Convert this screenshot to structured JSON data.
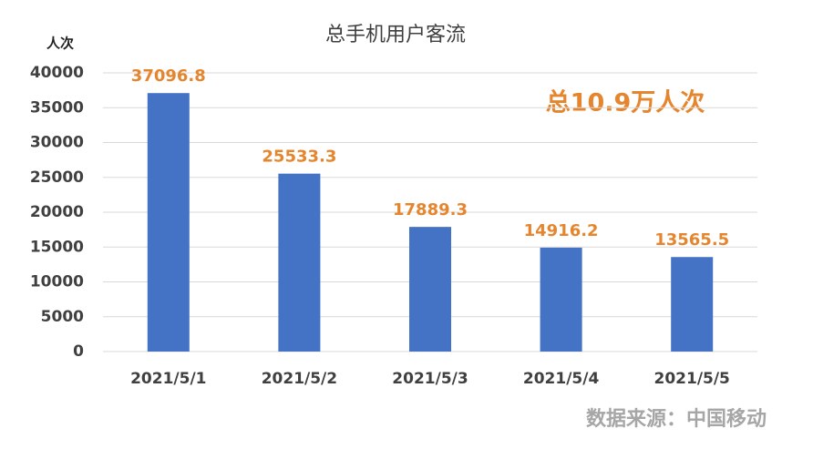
{
  "chart_data": {
    "type": "bar",
    "title": "总手机用户客流",
    "y_label": "人次",
    "annotation": "总10.9万人次",
    "source": "数据来源：中国移动",
    "categories": [
      "2021/5/1",
      "2021/5/2",
      "2021/5/3",
      "2021/5/4",
      "2021/5/5"
    ],
    "values": [
      37096.8,
      25533.3,
      17889.3,
      14916.2,
      13565.5
    ],
    "color": "#4472c4",
    "label_color": "#e5862e",
    "ylim": [
      0,
      40000
    ],
    "yticks": [
      0,
      5000,
      10000,
      15000,
      20000,
      25000,
      30000,
      35000,
      40000
    ],
    "grid": true
  }
}
